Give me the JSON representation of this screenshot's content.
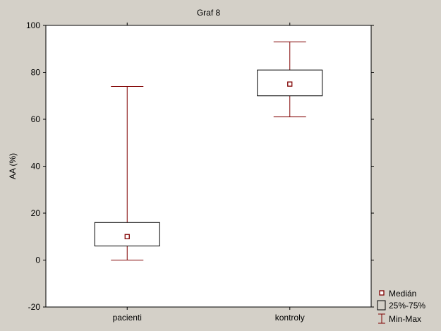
{
  "chart_data": {
    "type": "box",
    "title": "Graf 8",
    "xlabel": "",
    "ylabel": "AA (%)",
    "ylim": [
      -20,
      100
    ],
    "yticks": [
      -20,
      0,
      20,
      40,
      60,
      80,
      100
    ],
    "categories": [
      "pacienti",
      "kontroly"
    ],
    "series": [
      {
        "category": "pacienti",
        "min": 0,
        "q1": 6,
        "median": 10,
        "q3": 16,
        "max": 74
      },
      {
        "category": "kontroly",
        "min": 61,
        "q1": 70,
        "median": 75,
        "q3": 81,
        "max": 93
      }
    ],
    "legend": {
      "placement": "bottom-right",
      "entries": [
        "Medián",
        "25%-75%",
        "Min-Max"
      ]
    },
    "colors": {
      "box": "#800000",
      "median_marker": "#800000",
      "plot_bg": "#ffffff",
      "frame_bg": "#d4d0c8"
    },
    "grid": false
  }
}
